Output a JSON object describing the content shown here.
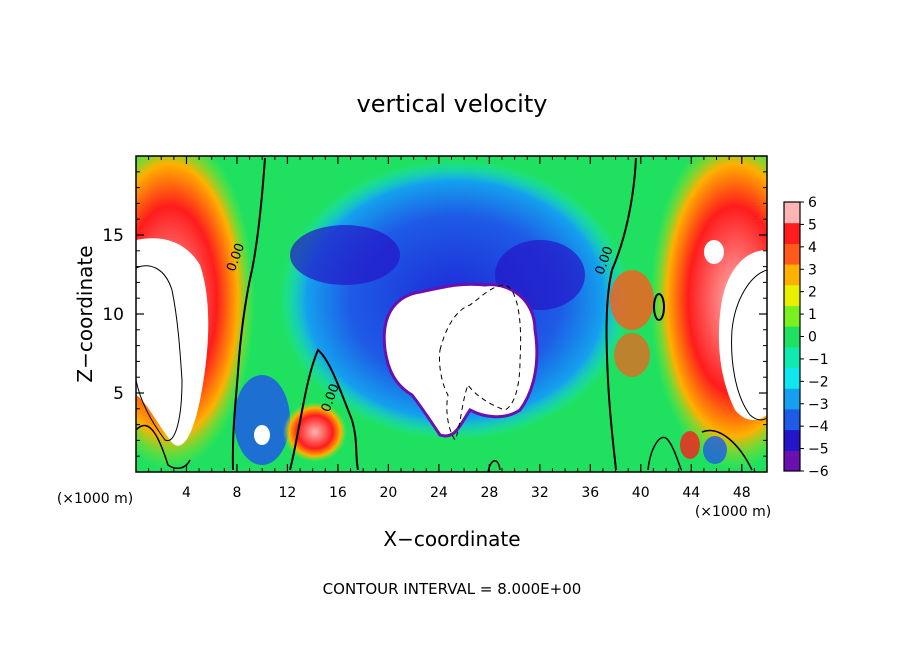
{
  "chart_data": {
    "type": "heatmap",
    "title": "vertical velocity",
    "xlabel": "X−coordinate",
    "ylabel": "Z−coordinate",
    "x_unit_left": "(×1000 m)",
    "x_unit_right": "(×1000 m)",
    "footer": "CONTOUR INTERVAL = 8.000E+00",
    "xlim": [
      0,
      50
    ],
    "ylim": [
      0,
      20
    ],
    "x_ticks": [
      4,
      8,
      12,
      16,
      20,
      24,
      28,
      32,
      36,
      40,
      44,
      48
    ],
    "x_tick_labels": [
      "4",
      "8",
      "12",
      "16",
      "20",
      "24",
      "28",
      "32",
      "36",
      "40",
      "44",
      "48"
    ],
    "y_ticks": [
      5,
      10,
      15
    ],
    "y_tick_labels": [
      "5",
      "10",
      "15"
    ],
    "colorbar": {
      "range": [
        -6,
        6
      ],
      "ticks": [
        6,
        5,
        4,
        3,
        2,
        1,
        0,
        -1,
        -2,
        -3,
        -4,
        -5,
        -6
      ],
      "tick_labels": [
        "6",
        "5",
        "4",
        "3",
        "2",
        "1",
        "0",
        "−1",
        "−2",
        "−3",
        "−4",
        "−5",
        "−6"
      ],
      "colors": [
        "#6a0fb0",
        "#2416c8",
        "#1e5be6",
        "#14a0ee",
        "#0fe6ee",
        "#10eab0",
        "#20e060",
        "#7af020",
        "#e6f000",
        "#ffb000",
        "#ff5a1a",
        "#ff1c1c",
        "#ffb4b4"
      ]
    },
    "contour_labels": [
      {
        "text": "0.00",
        "x": 8.2,
        "z": 13.5
      },
      {
        "text": "0.00",
        "x": 15.7,
        "z": 4.6
      },
      {
        "text": "0.00",
        "x": 37.4,
        "z": 13.3
      }
    ],
    "features": [
      {
        "name": "left updraft",
        "sign": "positive",
        "x": 3.5,
        "z": 9.0
      },
      {
        "name": "central downdraft",
        "sign": "negative",
        "x": 26.0,
        "z": 9.0
      },
      {
        "name": "right updraft",
        "sign": "positive",
        "x": 47.5,
        "z": 9.0
      }
    ]
  }
}
